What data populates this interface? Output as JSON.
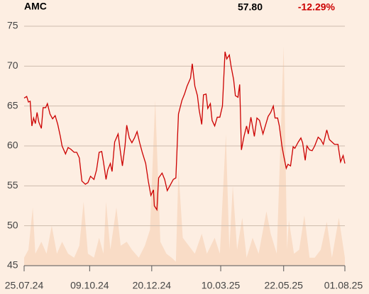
{
  "header": {
    "ticker": "AMC",
    "price": "57.80",
    "change": "-12.29%"
  },
  "chart_data": {
    "type": "line",
    "x": [
      0,
      3,
      5,
      7,
      9,
      11,
      13,
      15,
      17,
      20,
      22,
      25,
      27,
      30,
      33,
      36,
      39,
      42,
      44,
      48,
      51,
      54,
      58,
      61,
      64,
      67,
      71,
      74,
      77,
      81,
      84,
      87,
      90,
      92,
      95,
      97,
      100,
      102,
      105,
      109,
      112,
      114,
      117,
      119,
      122,
      125,
      128,
      131,
      134,
      137,
      141,
      144,
      147,
      150,
      151,
      154,
      156,
      160,
      163,
      166,
      170,
      173,
      176,
      179,
      183,
      186,
      189,
      193,
      195,
      198,
      201,
      203,
      206,
      208,
      211,
      213,
      216,
      218,
      221,
      224,
      227,
      230,
      233,
      235,
      238,
      240,
      243,
      245,
      248,
      250,
      252,
      255,
      258,
      260,
      263,
      267,
      270,
      273,
      277,
      280,
      283,
      286,
      289,
      291,
      294,
      296,
      299,
      301,
      304,
      306,
      309,
      312,
      314,
      318,
      321,
      323,
      326,
      328,
      331,
      334,
      337,
      341,
      344,
      347,
      351,
      354,
      357,
      360,
      364,
      367,
      370,
      372
    ],
    "series": [
      {
        "color": "#cc0000",
        "values": [
          66,
          66.2,
          65.5,
          65.6,
          62.5,
          63.5,
          62.8,
          64.2,
          63,
          62.2,
          64.8,
          64.8,
          65.3,
          64,
          63.4,
          63.8,
          62.7,
          61.2,
          60,
          59,
          59.8,
          59.6,
          59.2,
          59.2,
          58.5,
          55.6,
          55.2,
          55.4,
          56.2,
          55.8,
          57,
          59.2,
          59.3,
          58,
          55.8,
          57,
          57.8,
          56.8,
          60.5,
          61.5,
          59,
          57.5,
          60,
          62.6,
          61,
          60.4,
          61,
          61.8,
          60.4,
          59.2,
          57.8,
          55.6,
          53.8,
          54.5,
          52.5,
          52,
          56,
          56.6,
          55.8,
          54.4,
          55.2,
          55.8,
          56,
          64,
          65.7,
          66.5,
          67.5,
          68.5,
          70.3,
          67.5,
          66.3,
          64.5,
          62.7,
          66.4,
          66.5,
          64.7,
          65.3,
          63.2,
          62.5,
          63.6,
          63.6,
          65,
          71.8,
          70.9,
          71.4,
          70,
          68.3,
          66.3,
          66.1,
          67.7,
          59.5,
          61.2,
          62.5,
          61.5,
          63.6,
          61.2,
          63.5,
          63.2,
          61.5,
          62.6,
          63.7,
          64.2,
          65,
          63.5,
          63.5,
          62.5,
          60,
          58.8,
          57.2,
          57.7,
          57.5,
          59.9,
          59.7,
          60.5,
          61,
          60.4,
          58.2,
          60,
          59.5,
          59.4,
          60,
          61.1,
          60.8,
          60.2,
          62,
          60.8,
          60.5,
          60.2,
          60.2,
          58,
          58.8,
          57.8
        ]
      }
    ],
    "volume": {
      "color": "#f9dcc6",
      "x": [
        0,
        5,
        10,
        13,
        20,
        26,
        32,
        38,
        44,
        51,
        58,
        64,
        69,
        74,
        81,
        87,
        92,
        95,
        100,
        107,
        112,
        119,
        125,
        133,
        140,
        146,
        152,
        158,
        165,
        171,
        176,
        179,
        184,
        191,
        198,
        206,
        212,
        221,
        227,
        234,
        238,
        242,
        247,
        253,
        258,
        265,
        272,
        281,
        286,
        293,
        301,
        305,
        307,
        313,
        319,
        325,
        331,
        337,
        344,
        351,
        357,
        365,
        372
      ],
      "values": [
        46,
        47,
        52.3,
        46.5,
        48,
        46.5,
        50,
        46.5,
        48,
        46.5,
        46,
        47.5,
        53,
        46.5,
        46,
        48.5,
        46.5,
        53,
        47,
        52.3,
        47.5,
        48,
        47,
        46,
        47.5,
        49.5,
        65.8,
        48,
        46.5,
        46,
        45.5,
        57,
        48.5,
        47.5,
        46.5,
        49,
        46.5,
        48.5,
        46.5,
        61.5,
        47,
        55,
        47,
        51,
        46,
        48.5,
        46.5,
        51.8,
        49,
        46.5,
        72.5,
        47,
        50.7,
        46.5,
        47,
        51.3,
        46,
        46,
        47,
        50.5,
        46,
        51,
        46
      ]
    },
    "xlim": [
      0,
      372
    ],
    "xticks": [
      {
        "value": 0,
        "label": "25.07.24"
      },
      {
        "value": 76,
        "label": "09.10.24"
      },
      {
        "value": 148,
        "label": "20.12.24"
      },
      {
        "value": 228,
        "label": "10.03.25"
      },
      {
        "value": 301,
        "label": "22.05.25"
      },
      {
        "value": 372,
        "label": "01.08.25"
      }
    ],
    "ylim": [
      45,
      75
    ],
    "yticks": [
      45,
      50,
      55,
      60,
      65,
      70,
      75
    ],
    "grid": true
  }
}
